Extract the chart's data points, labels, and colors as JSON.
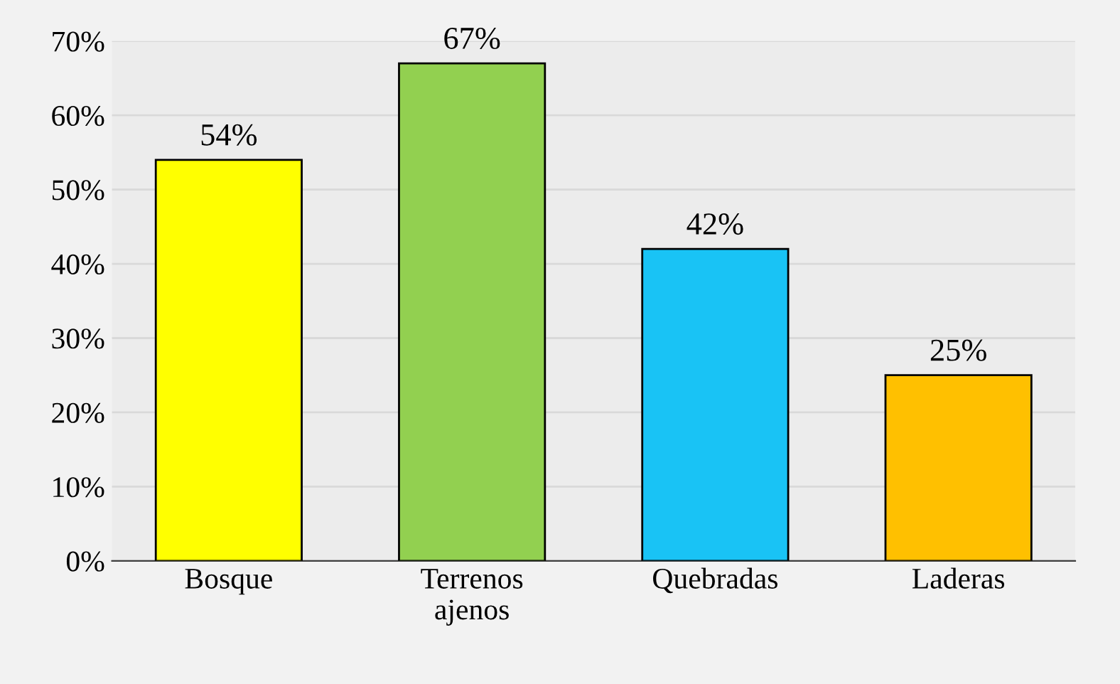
{
  "chart_data": {
    "type": "bar",
    "categories": [
      "Bosque",
      "Terrenos\najenos",
      "Quebradas",
      "Laderas"
    ],
    "values": [
      54,
      67,
      42,
      25
    ],
    "colors": [
      "#ffff00",
      "#92d050",
      "#19c3f5",
      "#ffc000"
    ],
    "value_labels": [
      "54%",
      "67%",
      "42%",
      "25%"
    ],
    "ylim": [
      0,
      70
    ],
    "yticks": [
      {
        "value": 0,
        "label": "0%"
      },
      {
        "value": 10,
        "label": "10%"
      },
      {
        "value": 20,
        "label": "20%"
      },
      {
        "value": 30,
        "label": "30%"
      },
      {
        "value": 40,
        "label": "40%"
      },
      {
        "value": 50,
        "label": "50%"
      },
      {
        "value": 60,
        "label": "60%"
      },
      {
        "value": 70,
        "label": "70%"
      }
    ],
    "grid": "y"
  }
}
